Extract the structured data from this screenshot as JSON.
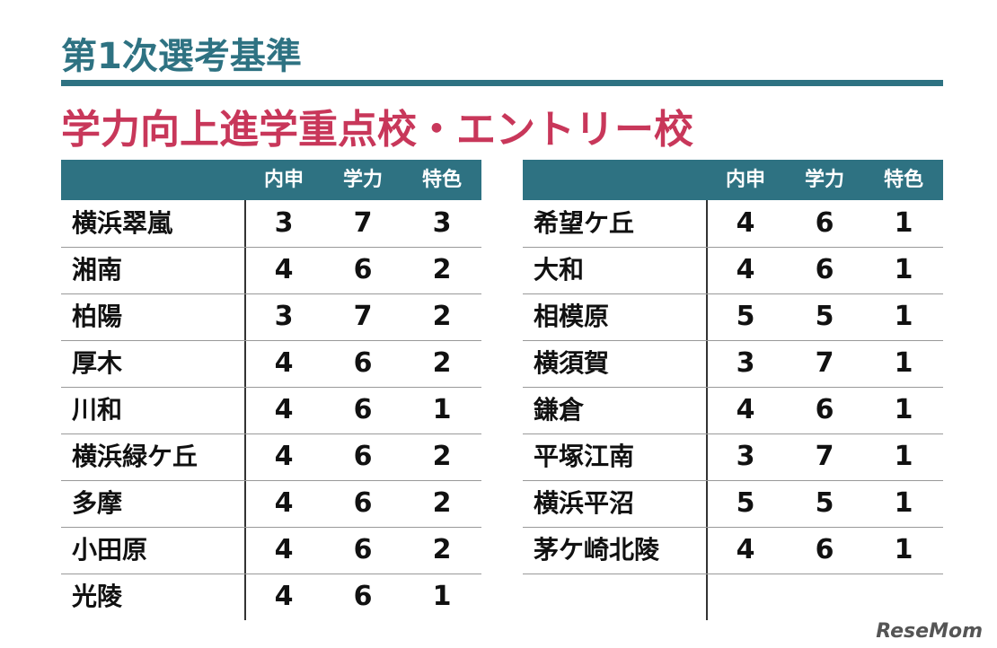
{
  "header": {
    "title": "第1次選考基準",
    "subtitle": "学力向上進学重点校・エントリー校"
  },
  "tables": [
    {
      "columns": [
        "内申",
        "学力",
        "特色"
      ],
      "rows": [
        {
          "name": "横浜翠嵐",
          "values": [
            3,
            7,
            3
          ]
        },
        {
          "name": "湘南",
          "values": [
            4,
            6,
            2
          ]
        },
        {
          "name": "柏陽",
          "values": [
            3,
            7,
            2
          ]
        },
        {
          "name": "厚木",
          "values": [
            4,
            6,
            2
          ]
        },
        {
          "name": "川和",
          "values": [
            4,
            6,
            1
          ]
        },
        {
          "name": "横浜緑ケ丘",
          "values": [
            4,
            6,
            2
          ]
        },
        {
          "name": "多摩",
          "values": [
            4,
            6,
            2
          ]
        },
        {
          "name": "小田原",
          "values": [
            4,
            6,
            2
          ]
        },
        {
          "name": "光陵",
          "values": [
            4,
            6,
            1
          ]
        }
      ]
    },
    {
      "columns": [
        "内申",
        "学力",
        "特色"
      ],
      "rows": [
        {
          "name": "希望ケ丘",
          "values": [
            4,
            6,
            1
          ]
        },
        {
          "name": "大和",
          "values": [
            4,
            6,
            1
          ]
        },
        {
          "name": "相模原",
          "values": [
            5,
            5,
            1
          ]
        },
        {
          "name": "横須賀",
          "values": [
            3,
            7,
            1
          ]
        },
        {
          "name": "鎌倉",
          "values": [
            4,
            6,
            1
          ]
        },
        {
          "name": "平塚江南",
          "values": [
            3,
            7,
            1
          ]
        },
        {
          "name": "横浜平沼",
          "values": [
            5,
            5,
            1
          ]
        },
        {
          "name": "茅ケ崎北陵",
          "values": [
            4,
            6,
            1
          ]
        }
      ]
    }
  ],
  "logo": "ReseMom"
}
